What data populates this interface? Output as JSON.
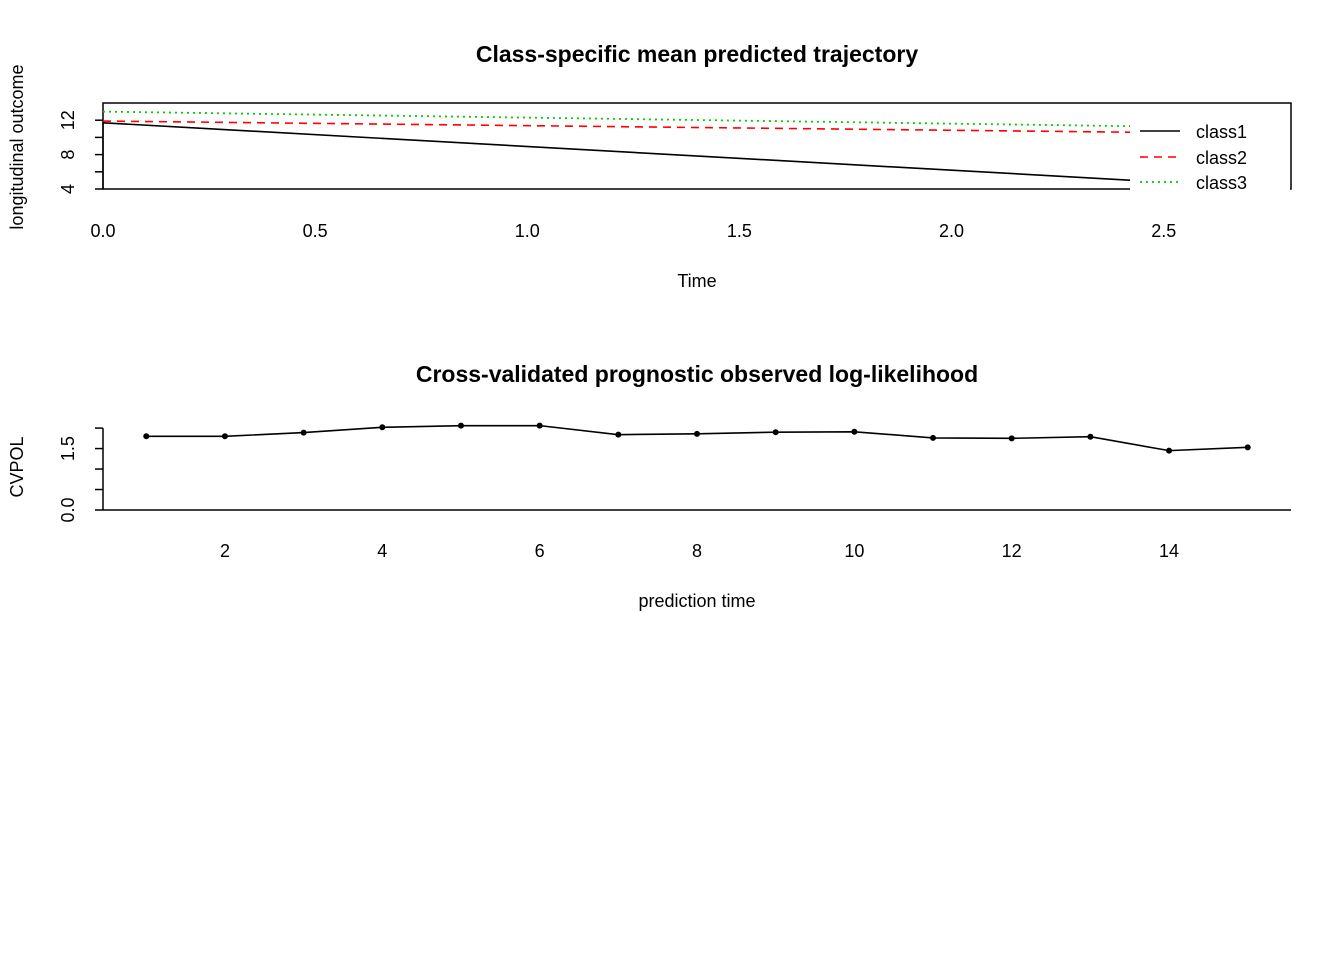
{
  "chart_data": [
    {
      "type": "line",
      "title": "Class-specific mean predicted trajectory",
      "xlabel": "Time",
      "ylabel": "longitudinal outcome",
      "xlim": [
        0.0,
        2.8
      ],
      "ylim": [
        4,
        14
      ],
      "xticks": [
        "0.0",
        "0.5",
        "1.0",
        "1.5",
        "2.0",
        "2.5"
      ],
      "xtick_values": [
        0.0,
        0.5,
        1.0,
        1.5,
        2.0,
        2.5
      ],
      "yticks": [
        "4",
        "8",
        "12"
      ],
      "ytick_values": [
        4,
        8,
        12
      ],
      "ytick_minor": [
        6,
        10
      ],
      "legend_position": "right",
      "series": [
        {
          "name": "class1",
          "x": [
            0.0,
            2.43
          ],
          "y": [
            11.7,
            5.0
          ],
          "color": "#000000",
          "dash": "solid"
        },
        {
          "name": "class2",
          "x": [
            0.0,
            2.43
          ],
          "y": [
            11.9,
            10.6
          ],
          "color": "#ff0000",
          "dash": "dashed"
        },
        {
          "name": "class3",
          "x": [
            0.0,
            2.43
          ],
          "y": [
            13.0,
            11.3
          ],
          "color": "#00cd00",
          "dash": "dotted"
        }
      ]
    },
    {
      "type": "line",
      "title": "Cross-validated prognostic observed log-likelihood",
      "xlabel": "prediction time",
      "ylabel": "CVPOL",
      "xlim": [
        0.45,
        15.55
      ],
      "ylim": [
        0.0,
        2.1
      ],
      "xticks": [
        "2",
        "4",
        "6",
        "8",
        "10",
        "12",
        "14"
      ],
      "xtick_values": [
        2,
        4,
        6,
        8,
        10,
        12,
        14
      ],
      "yticks": [
        "0.0",
        "1.5"
      ],
      "ytick_values": [
        0.0,
        1.5
      ],
      "ytick_minor": [
        0.5,
        1.0,
        2.0
      ],
      "series": [
        {
          "x": [
            1,
            2,
            3,
            4,
            5,
            6,
            7,
            8,
            9,
            10,
            11,
            12,
            13,
            14,
            15
          ],
          "y": [
            1.8,
            1.8,
            1.89,
            2.02,
            2.06,
            2.06,
            1.84,
            1.86,
            1.9,
            1.91,
            1.76,
            1.75,
            1.79,
            1.45,
            1.53
          ],
          "color": "#000000"
        }
      ]
    }
  ]
}
